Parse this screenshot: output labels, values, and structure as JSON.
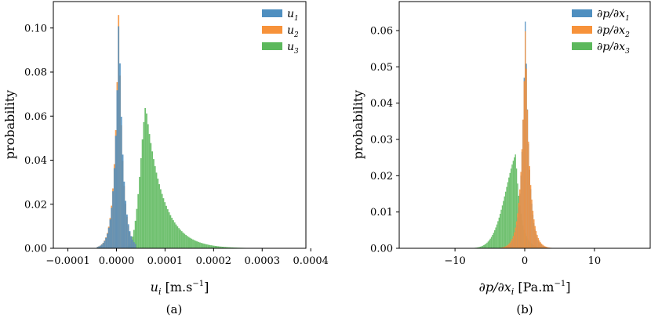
{
  "colors": {
    "series1": "#4f8fc0",
    "series2": "#f7923a",
    "series3": "#5cb85c"
  },
  "chart_data": [
    {
      "type": "histogram",
      "caption": "(a)",
      "xlabel": "u_i [m.s^-1]",
      "ylabel": "probability",
      "xlim": [
        -0.00013,
        0.00039
      ],
      "ylim": [
        0,
        0.112
      ],
      "xticks": [
        -0.0001,
        0.0,
        0.0001,
        0.0002,
        0.0003,
        0.0004
      ],
      "xtick_labels": [
        "−0.0001",
        "0.0000",
        "0.0001",
        "0.0002",
        "0.0003",
        "0.0004"
      ],
      "yticks": [
        0.0,
        0.02,
        0.04,
        0.06,
        0.08,
        0.1
      ],
      "ytick_labels": [
        "0.00",
        "0.02",
        "0.04",
        "0.06",
        "0.08",
        "0.10"
      ],
      "legend": {
        "position": "top-right"
      },
      "series": [
        {
          "name": "u_1",
          "dist": "laplace",
          "mean": 5e-06,
          "scale": 8.5e-06,
          "peak": 0.109,
          "range": [
            -4e-05,
            4e-05
          ]
        },
        {
          "name": "u_2",
          "dist": "laplace",
          "mean": 4.5e-06,
          "scale": 8.5e-06,
          "peak": 0.108,
          "range": [
            -4e-05,
            4e-05
          ]
        },
        {
          "name": "u_3",
          "dist": "skewed",
          "mode": 6e-05,
          "left_scale": 1.4e-05,
          "right_scale": 3.5e-05,
          "peak": 0.065,
          "range": [
            2e-05,
            0.00032
          ]
        }
      ]
    },
    {
      "type": "histogram",
      "caption": "(b)",
      "xlabel": "∂p/∂x_i [Pa.m^-1]",
      "ylabel": "probability",
      "xlim": [
        -18,
        18
      ],
      "ylim": [
        0,
        0.068
      ],
      "xticks": [
        -10,
        0,
        10
      ],
      "xtick_labels": [
        "−10",
        "0",
        "10"
      ],
      "yticks": [
        0.0,
        0.01,
        0.02,
        0.03,
        0.04,
        0.05,
        0.06
      ],
      "ytick_labels": [
        "0.00",
        "0.01",
        "0.02",
        "0.03",
        "0.04",
        "0.05",
        "0.06"
      ],
      "legend": {
        "position": "top-right"
      },
      "series": [
        {
          "name": "∂p/∂x_1",
          "dist": "laplace",
          "mean": 0.1,
          "scale": 0.55,
          "peak": 0.065,
          "range": [
            -6,
            6
          ]
        },
        {
          "name": "∂p/∂x_2",
          "dist": "laplace",
          "mean": 0.1,
          "scale": 0.6,
          "peak": 0.062,
          "range": [
            -6,
            6
          ]
        },
        {
          "name": "∂p/∂x_3",
          "dist": "skewed",
          "mode": -1.3,
          "left_scale": 2.0,
          "right_scale": 0.75,
          "peak": 0.026,
          "range": [
            -16,
            3
          ]
        }
      ]
    }
  ]
}
